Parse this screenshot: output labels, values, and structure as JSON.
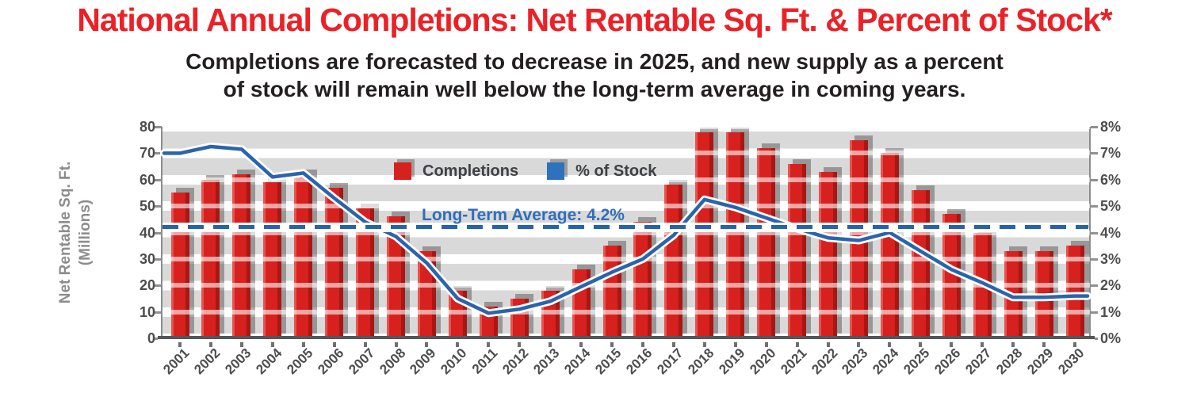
{
  "header": {
    "title": "National Annual Completions: Net Rentable Sq. Ft. & Percent of Stock*",
    "subtitle_line1": "Completions are forecasted to decrease in 2025, and new supply as a percent",
    "subtitle_line2": "of stock will remain well below the long-term average in coming years."
  },
  "legend": {
    "bar_label": "Completions",
    "line_label": "% of Stock"
  },
  "average_line": {
    "label": "Long-Term Average: 4.2%",
    "value": 4.2
  },
  "axes": {
    "left_title_line1": "Net Rentable Sq. Ft.",
    "left_title_line2": "(Millions)",
    "left_ticks_top_to_bottom": [
      "80",
      "70",
      "60",
      "50",
      "40",
      "30",
      "20",
      "10",
      "0"
    ],
    "right_ticks_top_to_bottom": [
      "8%",
      "7%",
      "6%",
      "5%",
      "4%",
      "3%",
      "2%",
      "1%",
      "0%"
    ]
  },
  "colors": {
    "title_red": "#ec2127",
    "bar_red": "#d7211f",
    "line_blue": "#2a64ad",
    "legend_line_blue": "#2e72bd",
    "avg_blue": "#2563ae",
    "band_grey": "#d9d9d9",
    "tick_grey": "#4d4d4d"
  },
  "chart_data": {
    "type": "bar+line",
    "title": "National Annual Completions: Net Rentable Sq. Ft. & Percent of Stock*",
    "categories": [
      "2001",
      "2002",
      "2003",
      "2004",
      "2005",
      "2006",
      "2007",
      "2008",
      "2009",
      "2010",
      "2011",
      "2012",
      "2013",
      "2014",
      "2015",
      "2016",
      "2017",
      "2018",
      "2019",
      "2020",
      "2021",
      "2022",
      "2023",
      "2024",
      "2025",
      "2026",
      "2027",
      "2028",
      "2029",
      "2030"
    ],
    "series": [
      {
        "name": "Completions",
        "type": "bar",
        "axis": "left",
        "units": "millions of sq. ft.",
        "values": [
          55,
          60,
          62,
          59,
          62,
          57,
          49,
          46,
          33,
          18,
          12,
          15,
          18,
          26,
          35,
          44,
          58,
          78,
          78,
          72,
          66,
          63,
          75,
          70,
          56,
          47,
          40,
          33,
          33,
          35
        ]
      },
      {
        "name": "% of Stock",
        "type": "line",
        "axis": "right",
        "units": "percent",
        "values": [
          7.0,
          7.25,
          7.15,
          6.1,
          6.25,
          5.3,
          4.4,
          3.85,
          2.85,
          1.5,
          0.95,
          1.1,
          1.4,
          1.95,
          2.5,
          3.0,
          3.9,
          5.25,
          4.95,
          4.55,
          4.15,
          3.8,
          3.7,
          4.0,
          3.3,
          2.6,
          2.1,
          1.55,
          1.55,
          1.6
        ]
      }
    ],
    "ylim_left": [
      0,
      80
    ],
    "ylim_right": [
      0,
      8
    ],
    "reference_line": {
      "name": "Long-Term Average",
      "value_pct": 4.2,
      "style": "dashed"
    },
    "grid": "horizontal-bands",
    "legend_position": "top-center-inside"
  }
}
